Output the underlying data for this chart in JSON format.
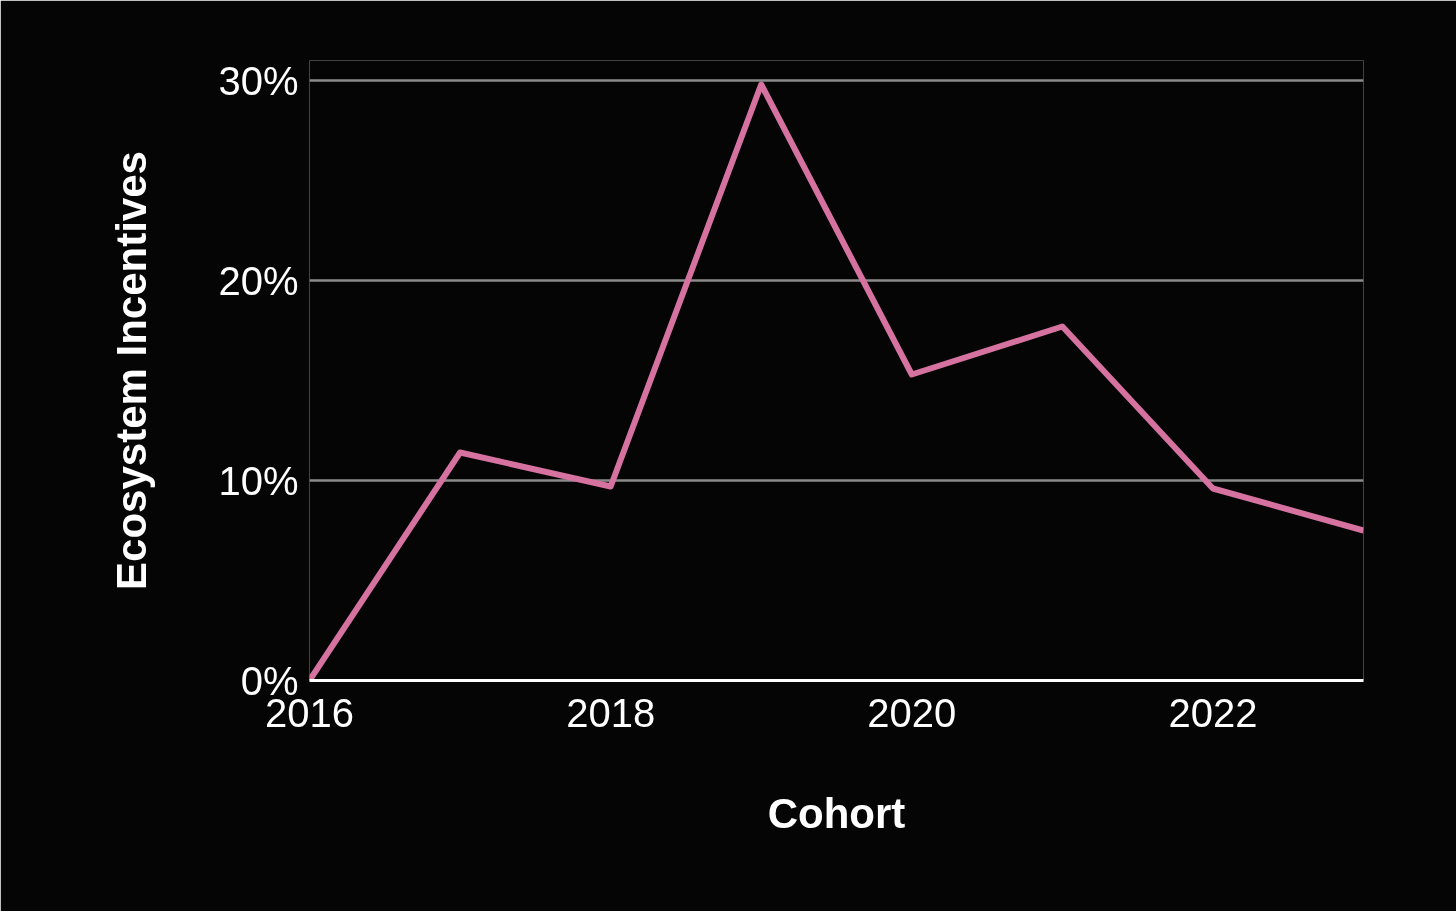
{
  "chart_data": {
    "type": "line",
    "xlabel": "Cohort",
    "ylabel": "Ecosystem Incentives",
    "x": [
      2016,
      2017,
      2018,
      2019,
      2020,
      2021,
      2022,
      2023
    ],
    "series": [
      {
        "color": "#d672a0",
        "values": [
          0,
          11.4,
          9.7,
          29.8,
          15.3,
          17.7,
          9.6,
          7.5
        ]
      }
    ],
    "xlim": [
      2016,
      2023
    ],
    "xticks": [
      2016,
      2018,
      2020,
      2022
    ],
    "ylim": [
      0,
      31
    ],
    "yticks": [
      {
        "value": 0,
        "label": "0%"
      },
      {
        "value": 10,
        "label": "10%"
      },
      {
        "value": 20,
        "label": "20%"
      },
      {
        "value": 30,
        "label": "30%"
      }
    ],
    "grid": "y",
    "marker": "none",
    "line_style": "solid"
  }
}
